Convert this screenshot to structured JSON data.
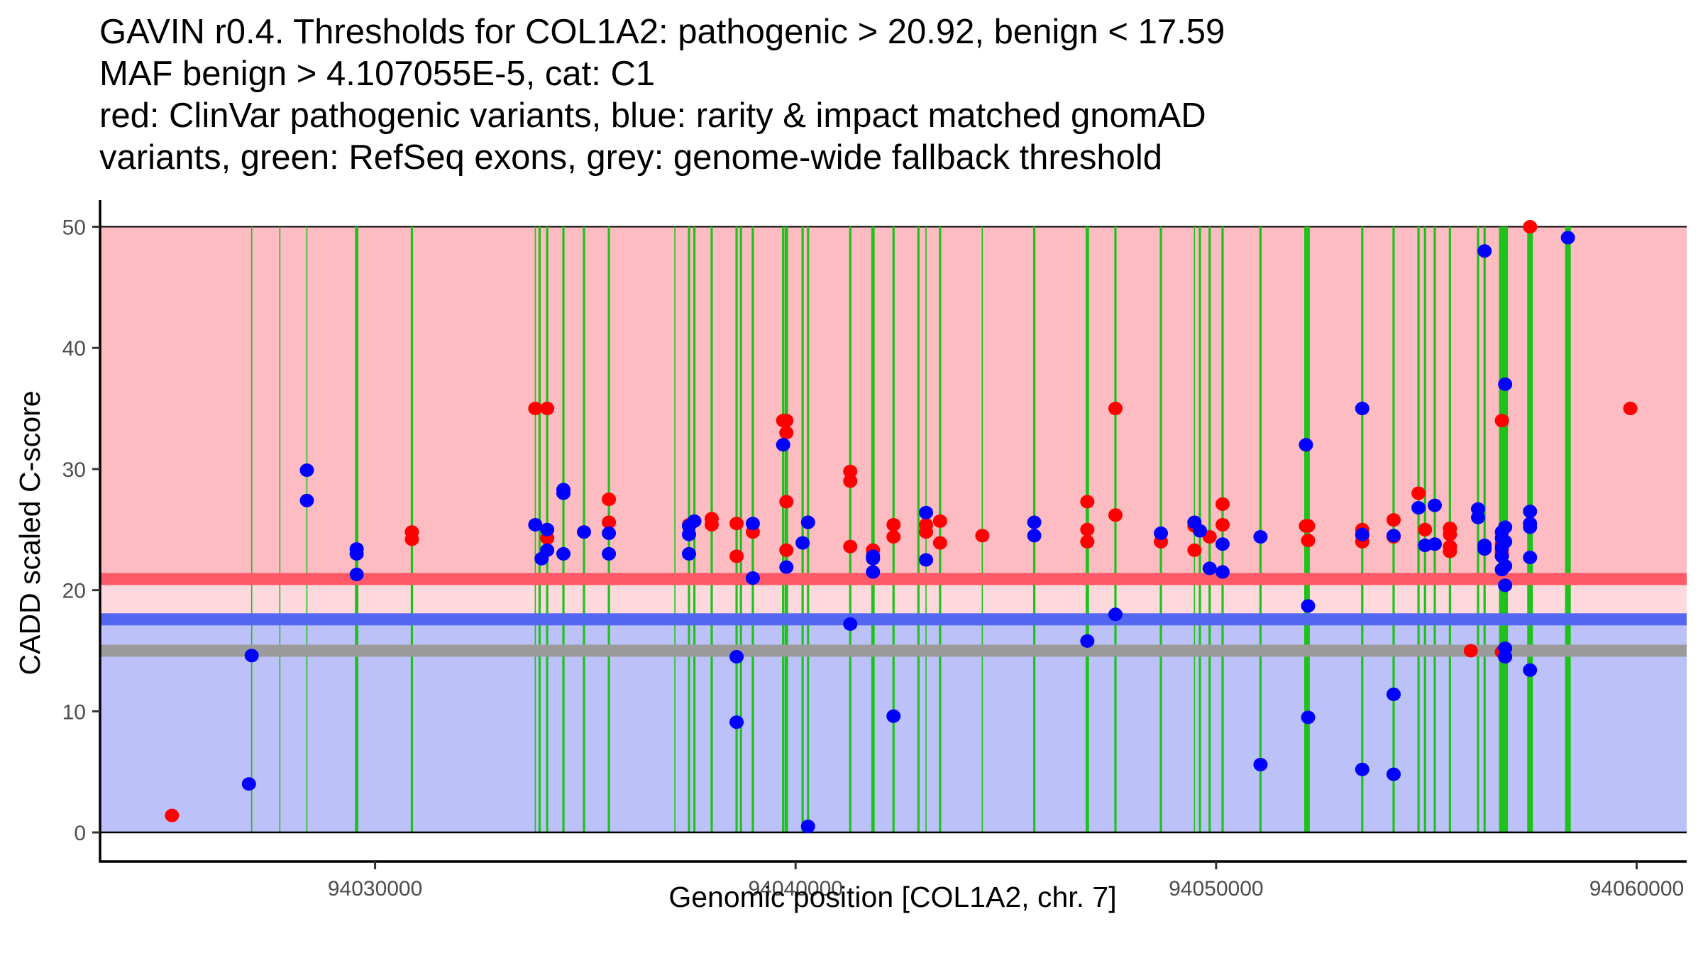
{
  "chart_data": {
    "type": "scatter",
    "title_lines": [
      "GAVIN r0.4. Thresholds for COL1A2: pathogenic > 20.92, benign < 17.59",
      "MAF benign > 4.107055E-5, cat: C1",
      "red: ClinVar pathogenic variants, blue: rarity & impact matched gnomAD",
      "variants, green: RefSeq exons, grey: genome-wide fallback threshold"
    ],
    "xlabel": "Genomic position [COL1A2, chr. 7]",
    "ylabel": "CADD scaled C-score",
    "xlim": [
      94023460,
      94061190
    ],
    "ylim": [
      -2.4,
      52.2
    ],
    "x_ticks": [
      94030000,
      94040000,
      94050000,
      94060000
    ],
    "x_tick_labels": [
      "94030000",
      "94040000",
      "94050000",
      "94060000"
    ],
    "y_ticks": [
      0,
      10,
      20,
      30,
      40,
      50
    ],
    "y_tick_labels": [
      "0",
      "10",
      "20",
      "30",
      "40",
      "50"
    ],
    "grid": false,
    "regions": {
      "pathogenic": {
        "from": 20.92,
        "to": 50,
        "color": "#fcbcc1"
      },
      "uncertain": {
        "from": 17.59,
        "to": 20.92,
        "color": "#fdd8dc"
      },
      "benign": {
        "from": 0,
        "to": 17.59,
        "color": "#bdc1f9"
      }
    },
    "thresholds": [
      {
        "name": "pathogenic",
        "value": 20.92,
        "color": "#fd5968"
      },
      {
        "name": "benign",
        "value": 17.59,
        "color": "#5467f2"
      },
      {
        "name": "genome-wide fallback",
        "value": 15.0,
        "color": "#9b9b9b"
      }
    ],
    "exons": {
      "color": "#1ec21a",
      "positions": [
        94027066,
        94027735,
        94028378,
        94029562,
        94030875,
        94033810,
        94033912,
        94034093,
        94034479,
        94034968,
        94035560,
        94037130,
        94037465,
        94037593,
        94038005,
        94038597,
        94038700,
        94038983,
        94039704,
        94039781,
        94040167,
        94040296,
        94041300,
        94041840,
        94042329,
        94042921,
        94043102,
        94043436,
        94044440,
        94045676,
        94046937,
        94047606,
        94048687,
        94049485,
        94049614,
        94049846,
        94050154,
        94051055,
        94052136,
        94052188,
        94053475,
        94054221,
        94054813,
        94054968,
        94055200,
        94055560,
        94056229,
        94056384,
        94056795,
        94056873,
        94057465,
        94058366
      ],
      "widths": [
        1,
        1,
        1,
        3,
        2,
        1,
        2,
        2,
        2,
        2,
        2,
        1,
        2,
        2,
        2,
        2,
        2,
        2,
        2,
        3,
        2,
        2,
        2,
        3,
        2,
        2,
        1,
        2,
        1,
        2,
        3,
        2,
        2,
        1,
        2,
        2,
        2,
        2,
        3,
        3,
        2,
        2,
        2,
        2,
        2,
        2,
        2,
        2,
        5,
        5,
        5,
        5
      ]
    },
    "series": [
      {
        "name": "ClinVar pathogenic variants",
        "color": "#ff0000",
        "points": [
          [
            94025170,
            1.4
          ],
          [
            94030875,
            24.8
          ],
          [
            94030875,
            24.2
          ],
          [
            94033810,
            35.0
          ],
          [
            94034093,
            35.0
          ],
          [
            94034093,
            24.3
          ],
          [
            94035560,
            27.5
          ],
          [
            94035560,
            25.6
          ],
          [
            94037465,
            25.4
          ],
          [
            94038005,
            25.9
          ],
          [
            94038005,
            25.4
          ],
          [
            94038597,
            25.5
          ],
          [
            94038597,
            22.8
          ],
          [
            94038983,
            24.8
          ],
          [
            94039704,
            34.0
          ],
          [
            94039781,
            34.0
          ],
          [
            94039781,
            33.0
          ],
          [
            94039781,
            27.3
          ],
          [
            94039781,
            23.3
          ],
          [
            94040296,
            25.6
          ],
          [
            94041300,
            29.8
          ],
          [
            94041300,
            29.0
          ],
          [
            94041300,
            23.6
          ],
          [
            94041840,
            23.3
          ],
          [
            94042329,
            25.4
          ],
          [
            94042329,
            24.4
          ],
          [
            94043102,
            25.4
          ],
          [
            94043102,
            24.8
          ],
          [
            94043436,
            25.7
          ],
          [
            94043436,
            23.9
          ],
          [
            94044440,
            24.5
          ],
          [
            94046937,
            27.3
          ],
          [
            94046937,
            25.0
          ],
          [
            94046937,
            24.0
          ],
          [
            94047606,
            35.0
          ],
          [
            94047606,
            26.2
          ],
          [
            94048687,
            24.0
          ],
          [
            94049485,
            25.3
          ],
          [
            94049485,
            23.3
          ],
          [
            94049846,
            24.4
          ],
          [
            94050154,
            27.1
          ],
          [
            94050154,
            25.4
          ],
          [
            94052136,
            25.3
          ],
          [
            94052188,
            24.1
          ],
          [
            94052188,
            25.3
          ],
          [
            94053475,
            25.0
          ],
          [
            94053475,
            24.0
          ],
          [
            94053475,
            24.5
          ],
          [
            94054221,
            25.8
          ],
          [
            94054221,
            24.4
          ],
          [
            94054813,
            28.0
          ],
          [
            94054968,
            25.0
          ],
          [
            94055560,
            25.1
          ],
          [
            94055560,
            24.6
          ],
          [
            94055560,
            23.2
          ],
          [
            94055560,
            23.6
          ],
          [
            94056057,
            15.0
          ],
          [
            94056795,
            34.0
          ],
          [
            94056795,
            23.8
          ],
          [
            94056795,
            23.2
          ],
          [
            94056795,
            23.0
          ],
          [
            94056795,
            14.9
          ],
          [
            94057465,
            50.0
          ],
          [
            94059850,
            35.0
          ]
        ]
      },
      {
        "name": "rarity & impact matched gnomAD variants",
        "color": "#0000ff",
        "points": [
          [
            94027066,
            14.6
          ],
          [
            94027000,
            4.0
          ],
          [
            94028378,
            29.9
          ],
          [
            94028378,
            27.4
          ],
          [
            94029562,
            23.4
          ],
          [
            94029562,
            23.0
          ],
          [
            94029562,
            21.3
          ],
          [
            94033810,
            25.4
          ],
          [
            94034093,
            25.0
          ],
          [
            94034093,
            23.3
          ],
          [
            94033960,
            22.6
          ],
          [
            94034479,
            28.3
          ],
          [
            94034479,
            28.0
          ],
          [
            94034479,
            23.0
          ],
          [
            94034968,
            24.8
          ],
          [
            94035560,
            24.7
          ],
          [
            94035560,
            23.0
          ],
          [
            94037465,
            25.3
          ],
          [
            94037465,
            24.6
          ],
          [
            94037465,
            23.0
          ],
          [
            94037593,
            25.7
          ],
          [
            94038597,
            14.5
          ],
          [
            94038597,
            9.1
          ],
          [
            94038983,
            21.0
          ],
          [
            94038983,
            25.5
          ],
          [
            94039704,
            32.0
          ],
          [
            94039781,
            21.9
          ],
          [
            94040167,
            23.9
          ],
          [
            94040296,
            25.6
          ],
          [
            94040296,
            0.5
          ],
          [
            94041300,
            17.2
          ],
          [
            94041840,
            22.6
          ],
          [
            94041840,
            21.5
          ],
          [
            94041840,
            22.8
          ],
          [
            94042329,
            9.6
          ],
          [
            94043102,
            26.4
          ],
          [
            94043102,
            22.5
          ],
          [
            94045676,
            25.6
          ],
          [
            94045676,
            24.5
          ],
          [
            94046937,
            15.8
          ],
          [
            94047606,
            18.0
          ],
          [
            94048687,
            24.7
          ],
          [
            94049485,
            25.6
          ],
          [
            94049614,
            24.9
          ],
          [
            94049846,
            21.8
          ],
          [
            94050154,
            23.8
          ],
          [
            94050154,
            21.5
          ],
          [
            94051055,
            24.4
          ],
          [
            94051055,
            5.6
          ],
          [
            94052136,
            32.0
          ],
          [
            94052188,
            18.7
          ],
          [
            94052188,
            9.5
          ],
          [
            94053475,
            35.0
          ],
          [
            94053475,
            24.6
          ],
          [
            94053475,
            5.2
          ],
          [
            94054221,
            24.5
          ],
          [
            94054221,
            11.4
          ],
          [
            94054221,
            4.8
          ],
          [
            94054813,
            26.8
          ],
          [
            94054968,
            23.7
          ],
          [
            94055200,
            27.0
          ],
          [
            94055200,
            23.8
          ],
          [
            94056229,
            26.7
          ],
          [
            94056229,
            26.0
          ],
          [
            94056384,
            48.0
          ],
          [
            94056384,
            23.7
          ],
          [
            94056384,
            23.4
          ],
          [
            94056795,
            24.8
          ],
          [
            94056795,
            24.3
          ],
          [
            94056795,
            23.5
          ],
          [
            94056795,
            22.8
          ],
          [
            94056795,
            21.7
          ],
          [
            94056873,
            37.0
          ],
          [
            94056873,
            25.2
          ],
          [
            94056873,
            24.0
          ],
          [
            94056873,
            22.0
          ],
          [
            94056873,
            20.4
          ],
          [
            94056873,
            15.2
          ],
          [
            94056873,
            14.5
          ],
          [
            94057465,
            26.5
          ],
          [
            94057465,
            25.5
          ],
          [
            94057465,
            25.2
          ],
          [
            94057465,
            22.7
          ],
          [
            94057465,
            13.4
          ],
          [
            94058366,
            49.1
          ]
        ]
      }
    ]
  }
}
